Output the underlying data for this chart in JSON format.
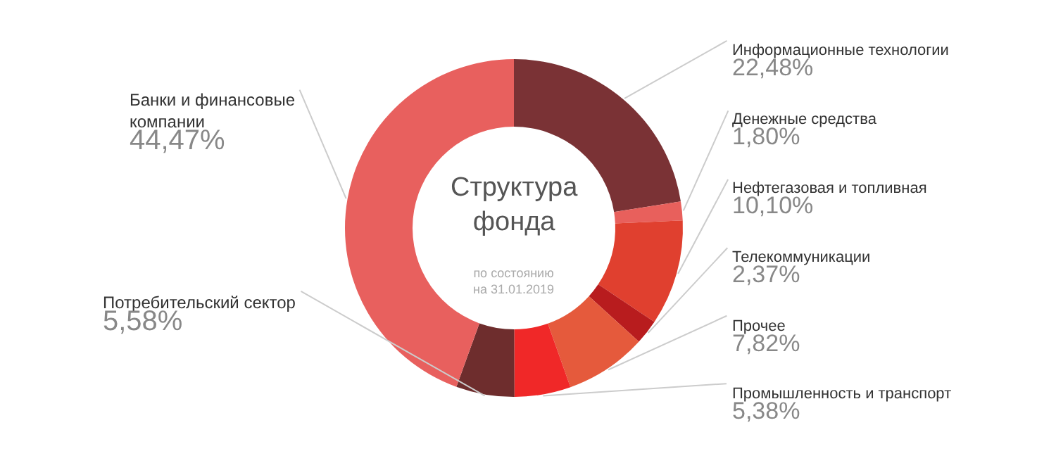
{
  "chart_data": {
    "type": "donut",
    "title": "Структура фонда",
    "subtitle": "по состоянию на 31.01.2019",
    "categories": [
      "Информационные технологии",
      "Денежные средства",
      "Нефтегазовая и топливная",
      "Телекоммуникации",
      "Прочее",
      "Промышленность и транспорт",
      "Потребительский сектор",
      "Банки и финансовые компании"
    ],
    "values": [
      22.48,
      1.8,
      10.1,
      2.37,
      7.82,
      5.38,
      5.58,
      44.47
    ],
    "value_labels": [
      "22,48%",
      "1,80%",
      "10,10%",
      "2,37%",
      "7,82%",
      "5,38%",
      "5,58%",
      "44,47%"
    ],
    "colors": [
      "#7a3235",
      "#e8605c",
      "#e0402f",
      "#b81c1e",
      "#e55a3c",
      "#f02828",
      "#6e2d2d",
      "#e8605e"
    ],
    "legend": false
  }
}
